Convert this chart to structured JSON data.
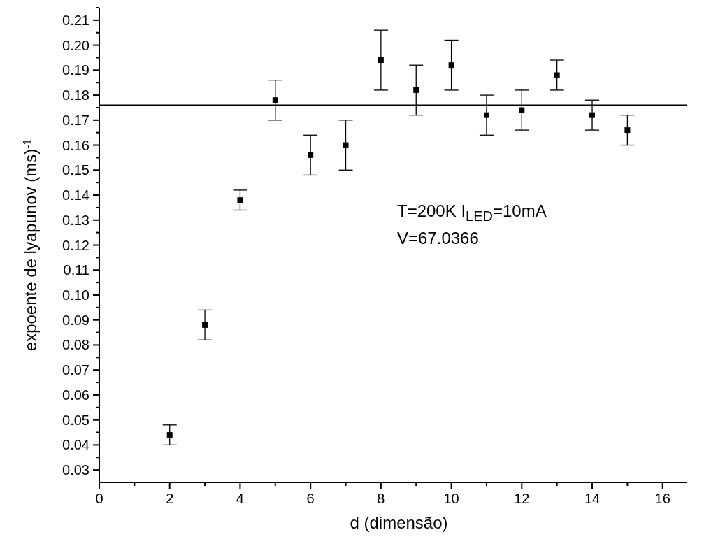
{
  "chart_data": {
    "type": "scatter",
    "xlabel": "d (dimensão)",
    "ylabel": "expoente de lyapunov (ms)$^{-1}$",
    "x": [
      2,
      3,
      4,
      5,
      6,
      7,
      8,
      9,
      10,
      11,
      12,
      13,
      14,
      15
    ],
    "series": [
      {
        "color": "#000000",
        "values": [
          0.044,
          0.088,
          0.138,
          0.178,
          0.156,
          0.16,
          0.194,
          0.182,
          0.192,
          0.172,
          0.174,
          0.188,
          0.172,
          0.166
        ],
        "errors": [
          0.004,
          0.006,
          0.004,
          0.008,
          0.008,
          0.01,
          0.012,
          0.01,
          0.01,
          0.008,
          0.008,
          0.006,
          0.006,
          0.006
        ]
      }
    ],
    "marker": "square",
    "xlim": [
      0,
      16.7
    ],
    "ylim": [
      0.025,
      0.215
    ],
    "xticks": [
      0,
      {
        "value": 1,
        "label": null
      },
      2,
      {
        "value": 3,
        "label": null
      },
      4,
      {
        "value": 5,
        "label": null
      },
      6,
      {
        "value": 7,
        "label": null
      },
      8,
      {
        "value": 9,
        "label": null
      },
      10,
      {
        "value": 11,
        "label": null
      },
      12,
      {
        "value": 13,
        "label": null
      },
      14,
      {
        "value": 15,
        "label": null
      },
      16
    ],
    "yticks": [
      0.03,
      {
        "value": 0.035,
        "label": null
      },
      0.04,
      {
        "value": 0.045,
        "label": null
      },
      0.05,
      {
        "value": 0.055,
        "label": null
      },
      0.06,
      {
        "value": 0.065,
        "label": null
      },
      0.07,
      {
        "value": 0.075,
        "label": null
      },
      0.08,
      {
        "value": 0.085,
        "label": null
      },
      0.09,
      {
        "value": 0.095,
        "label": null
      },
      {
        "value": 0.1,
        "label": "0.10"
      },
      {
        "value": 0.105,
        "label": null
      },
      0.11,
      {
        "value": 0.115,
        "label": null
      },
      0.12,
      {
        "value": 0.125,
        "label": null
      },
      0.13,
      {
        "value": 0.135,
        "label": null
      },
      0.14,
      {
        "value": 0.145,
        "label": null
      },
      0.15,
      {
        "value": 0.155,
        "label": null
      },
      0.16,
      {
        "value": 0.165,
        "label": null
      },
      0.17,
      {
        "value": 0.175,
        "label": null
      },
      0.18,
      {
        "value": 0.185,
        "label": null
      },
      0.19,
      {
        "value": 0.195,
        "label": null
      },
      {
        "value": 0.2,
        "label": "0.20"
      },
      {
        "value": 0.205,
        "label": null
      },
      0.21,
      {
        "value": 0.215,
        "label": null
      }
    ],
    "ref_lines": [
      {
        "axis": "y",
        "value": 0.176,
        "color": "#000000"
      }
    ],
    "annotations": [
      "T=200K I$_{LED}$=10mA",
      "V=67.0366"
    ],
    "grid": false
  }
}
